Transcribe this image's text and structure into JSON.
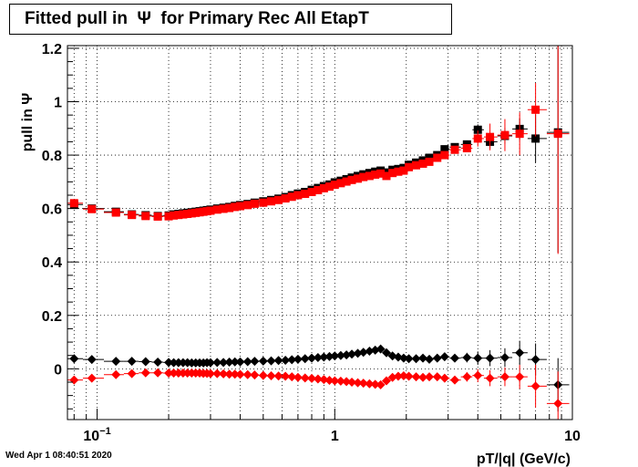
{
  "title": "Fitted pull in  Ψ  for Primary Rec All EtapT",
  "timestamp": "Wed Apr  1 08:40:51 2020",
  "chart_data": {
    "type": "scatter",
    "title": "Fitted pull in  Ψ  for Primary Rec All EtapT",
    "xlabel": "pT/|q| (GeV/c)",
    "ylabel": "pull in  Ψ",
    "xscale": "log",
    "xlim": [
      0.075,
      10
    ],
    "ylim": [
      -0.19,
      1.21
    ],
    "grid": true,
    "x_tick_labels": [
      {
        "value": 0.1,
        "label": "10",
        "sup": "−1"
      },
      {
        "value": 1,
        "label": "1",
        "sup": ""
      },
      {
        "value": 10,
        "label": "10",
        "sup": ""
      }
    ],
    "y_tick_labels": [
      {
        "value": 0,
        "label": "0"
      },
      {
        "value": 0.2,
        "label": "0.2"
      },
      {
        "value": 0.4,
        "label": "0.4"
      },
      {
        "value": 0.6,
        "label": "0.6"
      },
      {
        "value": 0.8,
        "label": "0.8"
      },
      {
        "value": 1,
        "label": "1"
      },
      {
        "value": 1.2,
        "label": "1.2"
      }
    ],
    "x": [
      0.08,
      0.095,
      0.12,
      0.14,
      0.16,
      0.18,
      0.2,
      0.21,
      0.22,
      0.23,
      0.24,
      0.25,
      0.26,
      0.27,
      0.28,
      0.29,
      0.3,
      0.32,
      0.34,
      0.36,
      0.38,
      0.4,
      0.43,
      0.46,
      0.5,
      0.54,
      0.58,
      0.62,
      0.66,
      0.7,
      0.75,
      0.8,
      0.85,
      0.9,
      0.95,
      1.0,
      1.06,
      1.12,
      1.18,
      1.25,
      1.32,
      1.4,
      1.48,
      1.56,
      1.65,
      1.75,
      1.85,
      1.95,
      2.05,
      2.2,
      2.35,
      2.5,
      2.7,
      2.9,
      3.2,
      3.6,
      4.0,
      4.5,
      5.2,
      6.0,
      7.0,
      8.7
    ],
    "series": [
      {
        "name": "",
        "color": "#000000",
        "marker": "square",
        "values": [
          0.615,
          0.6,
          0.588,
          0.578,
          0.575,
          0.572,
          0.574,
          0.578,
          0.58,
          0.582,
          0.584,
          0.586,
          0.588,
          0.59,
          0.592,
          0.594,
          0.596,
          0.6,
          0.603,
          0.606,
          0.61,
          0.613,
          0.617,
          0.622,
          0.627,
          0.632,
          0.637,
          0.643,
          0.65,
          0.656,
          0.662,
          0.67,
          0.677,
          0.684,
          0.69,
          0.698,
          0.704,
          0.71,
          0.716,
          0.722,
          0.728,
          0.733,
          0.738,
          0.742,
          0.735,
          0.745,
          0.748,
          0.752,
          0.764,
          0.772,
          0.78,
          0.79,
          0.8,
          0.822,
          0.83,
          0.84,
          0.895,
          0.85,
          0.872,
          0.898,
          0.862,
          0.885
        ],
        "errors": [
          0.01,
          0.006,
          0.005,
          0.004,
          0.004,
          0.004,
          0.003,
          0.003,
          0.003,
          0.003,
          0.003,
          0.003,
          0.003,
          0.003,
          0.003,
          0.003,
          0.003,
          0.003,
          0.003,
          0.003,
          0.003,
          0.003,
          0.003,
          0.003,
          0.003,
          0.003,
          0.003,
          0.003,
          0.004,
          0.004,
          0.004,
          0.004,
          0.004,
          0.004,
          0.004,
          0.004,
          0.004,
          0.005,
          0.005,
          0.005,
          0.005,
          0.005,
          0.006,
          0.006,
          0.006,
          0.006,
          0.007,
          0.007,
          0.007,
          0.008,
          0.008,
          0.009,
          0.01,
          0.012,
          0.013,
          0.015,
          0.02,
          0.025,
          0.03,
          0.04,
          0.09,
          0.45
        ]
      },
      {
        "name": "",
        "color": "#ff0000",
        "marker": "square",
        "values": [
          0.62,
          0.598,
          0.585,
          0.576,
          0.572,
          0.57,
          0.571,
          0.574,
          0.576,
          0.578,
          0.58,
          0.582,
          0.584,
          0.586,
          0.588,
          0.59,
          0.592,
          0.596,
          0.599,
          0.602,
          0.606,
          0.609,
          0.613,
          0.618,
          0.622,
          0.627,
          0.632,
          0.638,
          0.644,
          0.65,
          0.655,
          0.662,
          0.669,
          0.676,
          0.682,
          0.689,
          0.695,
          0.701,
          0.707,
          0.712,
          0.718,
          0.722,
          0.727,
          0.731,
          0.722,
          0.733,
          0.738,
          0.742,
          0.755,
          0.762,
          0.768,
          0.775,
          0.79,
          0.8,
          0.82,
          0.826,
          0.862,
          0.868,
          0.875,
          0.88,
          0.97,
          0.88
        ],
        "errors": [
          0.01,
          0.006,
          0.005,
          0.004,
          0.004,
          0.004,
          0.003,
          0.003,
          0.003,
          0.003,
          0.003,
          0.003,
          0.003,
          0.003,
          0.003,
          0.003,
          0.003,
          0.003,
          0.003,
          0.003,
          0.003,
          0.003,
          0.003,
          0.003,
          0.003,
          0.003,
          0.003,
          0.003,
          0.004,
          0.004,
          0.004,
          0.004,
          0.004,
          0.004,
          0.004,
          0.004,
          0.004,
          0.005,
          0.005,
          0.005,
          0.005,
          0.005,
          0.006,
          0.006,
          0.006,
          0.006,
          0.007,
          0.007,
          0.007,
          0.008,
          0.008,
          0.009,
          0.01,
          0.012,
          0.013,
          0.015,
          0.03,
          0.05,
          0.06,
          0.08,
          0.1,
          0.45
        ]
      },
      {
        "name": "",
        "color": "#000000",
        "marker": "diamond",
        "values": [
          0.038,
          0.035,
          0.028,
          0.028,
          0.027,
          0.025,
          0.024,
          0.023,
          0.023,
          0.023,
          0.023,
          0.022,
          0.022,
          0.022,
          0.022,
          0.023,
          0.023,
          0.024,
          0.024,
          0.025,
          0.026,
          0.026,
          0.027,
          0.028,
          0.029,
          0.03,
          0.031,
          0.032,
          0.034,
          0.036,
          0.038,
          0.04,
          0.042,
          0.044,
          0.046,
          0.048,
          0.05,
          0.052,
          0.055,
          0.058,
          0.062,
          0.066,
          0.07,
          0.074,
          0.06,
          0.048,
          0.044,
          0.04,
          0.038,
          0.038,
          0.04,
          0.036,
          0.04,
          0.045,
          0.04,
          0.042,
          0.04,
          0.04,
          0.042,
          0.06,
          0.035,
          -0.06
        ],
        "errors": [
          0.008,
          0.006,
          0.005,
          0.004,
          0.004,
          0.004,
          0.003,
          0.003,
          0.003,
          0.003,
          0.003,
          0.003,
          0.003,
          0.003,
          0.003,
          0.003,
          0.003,
          0.003,
          0.003,
          0.003,
          0.003,
          0.003,
          0.003,
          0.003,
          0.003,
          0.003,
          0.003,
          0.003,
          0.004,
          0.004,
          0.004,
          0.004,
          0.004,
          0.004,
          0.004,
          0.004,
          0.004,
          0.005,
          0.005,
          0.005,
          0.005,
          0.005,
          0.006,
          0.006,
          0.006,
          0.006,
          0.007,
          0.007,
          0.007,
          0.008,
          0.008,
          0.009,
          0.01,
          0.012,
          0.015,
          0.018,
          0.025,
          0.03,
          0.035,
          0.045,
          0.06,
          0.1
        ]
      },
      {
        "name": "",
        "color": "#ff0000",
        "marker": "diamond",
        "values": [
          -0.042,
          -0.035,
          -0.022,
          -0.018,
          -0.015,
          -0.015,
          -0.016,
          -0.016,
          -0.016,
          -0.016,
          -0.016,
          -0.016,
          -0.016,
          -0.016,
          -0.017,
          -0.017,
          -0.018,
          -0.018,
          -0.019,
          -0.02,
          -0.02,
          -0.021,
          -0.022,
          -0.023,
          -0.025,
          -0.026,
          -0.027,
          -0.028,
          -0.03,
          -0.032,
          -0.034,
          -0.036,
          -0.038,
          -0.04,
          -0.043,
          -0.045,
          -0.046,
          -0.048,
          -0.05,
          -0.052,
          -0.054,
          -0.056,
          -0.058,
          -0.06,
          -0.045,
          -0.032,
          -0.028,
          -0.026,
          -0.028,
          -0.03,
          -0.032,
          -0.03,
          -0.03,
          -0.035,
          -0.042,
          -0.03,
          -0.025,
          -0.035,
          -0.03,
          -0.03,
          -0.065,
          -0.13
        ],
        "errors": [
          0.008,
          0.006,
          0.005,
          0.004,
          0.004,
          0.004,
          0.003,
          0.003,
          0.003,
          0.003,
          0.003,
          0.003,
          0.003,
          0.003,
          0.003,
          0.003,
          0.003,
          0.003,
          0.003,
          0.003,
          0.003,
          0.003,
          0.003,
          0.003,
          0.003,
          0.003,
          0.003,
          0.003,
          0.004,
          0.004,
          0.004,
          0.004,
          0.004,
          0.004,
          0.004,
          0.004,
          0.004,
          0.005,
          0.005,
          0.005,
          0.005,
          0.005,
          0.006,
          0.006,
          0.006,
          0.006,
          0.007,
          0.007,
          0.007,
          0.008,
          0.008,
          0.009,
          0.01,
          0.012,
          0.015,
          0.018,
          0.025,
          0.03,
          0.035,
          0.045,
          0.08,
          0.12
        ]
      }
    ]
  }
}
